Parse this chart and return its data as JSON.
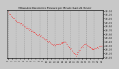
{
  "title": "Milwaukee Barometric Pressure per Minute (Last 24 Hours)",
  "background_color": "#c8c8c8",
  "plot_bg_color": "#c8c8c8",
  "line_color": "#ff0000",
  "marker_color": "#ff0000",
  "grid_color": "#888888",
  "title_color": "#000000",
  "tick_color": "#000000",
  "spine_color": "#000000",
  "y_min": 29.0,
  "y_max": 30.2,
  "y_ticks": [
    29.0,
    29.1,
    29.2,
    29.3,
    29.4,
    29.5,
    29.6,
    29.7,
    29.8,
    29.9,
    30.0,
    30.1,
    30.2
  ],
  "num_points": 144,
  "num_vgrid": 13,
  "num_xticks": 25
}
